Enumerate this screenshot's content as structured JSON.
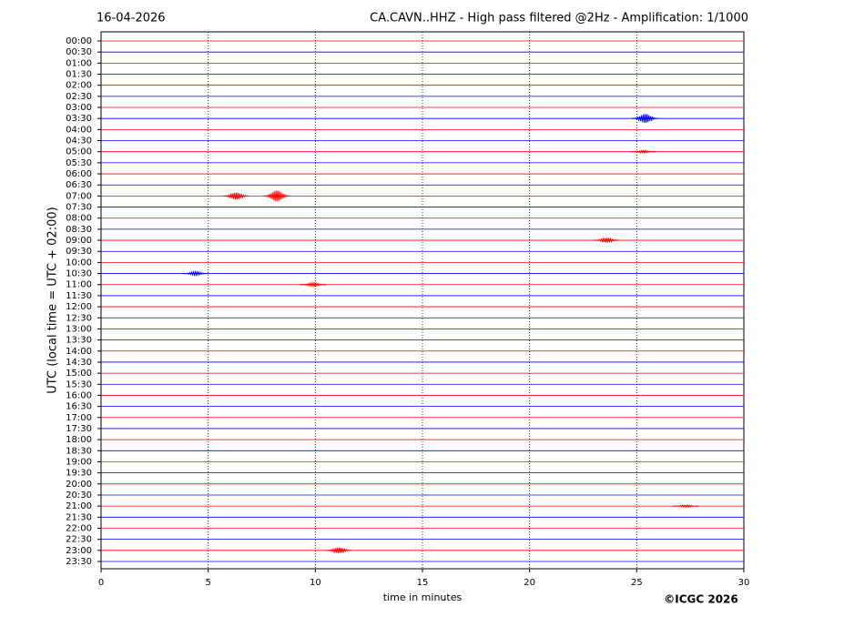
{
  "chart_data": {
    "type": "helicorder",
    "date": "16-04-2026",
    "title": "CA.CAVN..HHZ - High pass filtered @2Hz - Amplification: 1/1000",
    "ylabel": "UTC (local time = UTC + 02:00)",
    "xlabel": "time in minutes",
    "copyright": "©ICGC 2026",
    "categories": [
      "00:00",
      "00:30",
      "01:00",
      "01:30",
      "02:00",
      "02:30",
      "03:00",
      "03:30",
      "04:00",
      "04:30",
      "05:00",
      "05:30",
      "06:00",
      "06:30",
      "07:00",
      "07:30",
      "08:00",
      "08:30",
      "09:00",
      "09:30",
      "10:00",
      "10:30",
      "11:00",
      "11:30",
      "12:00",
      "12:30",
      "13:00",
      "13:30",
      "14:00",
      "14:30",
      "15:00",
      "15:30",
      "16:00",
      "16:30",
      "17:00",
      "17:30",
      "18:00",
      "18:30",
      "19:00",
      "19:30",
      "20:00",
      "20:30",
      "21:00",
      "21:30",
      "22:00",
      "22:30",
      "23:00",
      "23:30"
    ],
    "colors": [
      "#ff0000",
      "#0000ff"
    ],
    "xlim": [
      0,
      30
    ],
    "xticks": [
      0,
      5,
      10,
      15,
      20,
      25,
      30
    ],
    "grid": true,
    "events": [
      {
        "row": 7,
        "minute": 25.4,
        "amplitude": 0.4
      },
      {
        "row": 14,
        "minute": 6.3,
        "amplitude": 0.3
      },
      {
        "row": 14,
        "minute": 8.2,
        "amplitude": 0.5
      },
      {
        "row": 18,
        "minute": 23.6,
        "amplitude": 0.2
      },
      {
        "row": 21,
        "minute": 4.4,
        "amplitude": 0.15
      },
      {
        "row": 22,
        "minute": 9.9,
        "amplitude": 0.15
      },
      {
        "row": 10,
        "minute": 25.3,
        "amplitude": 0.1
      },
      {
        "row": 42,
        "minute": 27.3,
        "amplitude": 0.08
      },
      {
        "row": 46,
        "minute": 11.1,
        "amplitude": 0.25
      }
    ]
  }
}
